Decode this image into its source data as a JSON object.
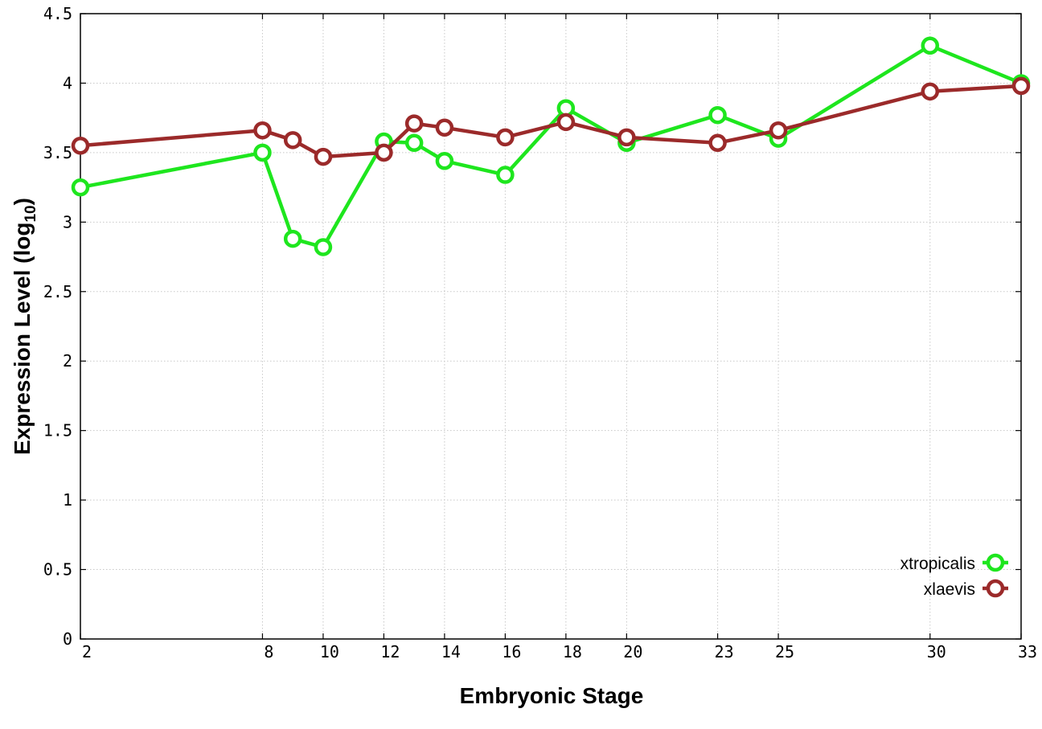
{
  "chart_data": {
    "type": "line",
    "xlabel": "Embryonic Stage",
    "ylabel_main": "Expression Level (log",
    "ylabel_sub": "10",
    "ylabel_close": ")",
    "xlim": [
      2,
      33
    ],
    "ylim": [
      0,
      4.5
    ],
    "xticks": [
      2,
      8,
      10,
      12,
      14,
      16,
      18,
      20,
      23,
      25,
      30,
      33
    ],
    "yticks": [
      0,
      0.5,
      1,
      1.5,
      2,
      2.5,
      3,
      3.5,
      4,
      4.5
    ],
    "ytick_labels": [
      "0",
      "0.5",
      "1",
      "1.5",
      "2",
      "2.5",
      "3",
      "3.5",
      "4",
      "4.5"
    ],
    "grid": true,
    "legend_position": "bottom-right",
    "series": [
      {
        "name": "xtropicalis",
        "color": "#1ee61e",
        "points": [
          [
            2,
            3.25
          ],
          [
            8,
            3.5
          ],
          [
            9,
            2.88
          ],
          [
            10,
            2.82
          ],
          [
            12,
            3.58
          ],
          [
            13,
            3.57
          ],
          [
            14,
            3.44
          ],
          [
            16,
            3.34
          ],
          [
            18,
            3.82
          ],
          [
            20,
            3.57
          ],
          [
            23,
            3.77
          ],
          [
            25,
            3.6
          ],
          [
            30,
            4.27
          ],
          [
            33,
            4.0
          ]
        ]
      },
      {
        "name": "xlaevis",
        "color": "#9b2a2a",
        "points": [
          [
            2,
            3.55
          ],
          [
            8,
            3.66
          ],
          [
            9,
            3.59
          ],
          [
            10,
            3.47
          ],
          [
            12,
            3.5
          ],
          [
            13,
            3.71
          ],
          [
            14,
            3.68
          ],
          [
            16,
            3.61
          ],
          [
            18,
            3.72
          ],
          [
            20,
            3.61
          ],
          [
            23,
            3.57
          ],
          [
            25,
            3.66
          ],
          [
            30,
            3.94
          ],
          [
            33,
            3.98
          ]
        ]
      }
    ]
  }
}
